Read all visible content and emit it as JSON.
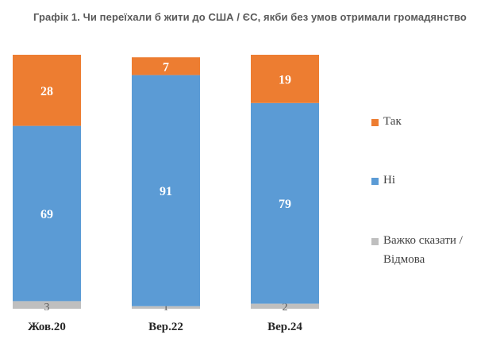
{
  "title": "Графік 1. Чи переїхали б жити до США / ЄС, якби без умов отримали громадянство",
  "colors": {
    "yes": "#ED7D31",
    "no": "#5B9BD5",
    "hard": "#BFBFBF"
  },
  "legend": {
    "items": [
      {
        "label": "Так",
        "color": "#ED7D31"
      },
      {
        "label": "Ні",
        "color": "#5B9BD5"
      },
      {
        "label": "Важко сказати / Відмова",
        "color": "#BFBFBF"
      }
    ]
  },
  "chart_data": {
    "type": "bar",
    "stacked": true,
    "title": "Графік 1. Чи переїхали б жити до США / ЄС, якби без умов отримали громадянство",
    "categories": [
      "Жов.20",
      "Вер.22",
      "Вер.24"
    ],
    "series": [
      {
        "name": "Важко сказати / Відмова",
        "values": [
          3,
          1,
          2
        ],
        "color": "#BFBFBF"
      },
      {
        "name": "Ні",
        "values": [
          69,
          91,
          79
        ],
        "color": "#5B9BD5"
      },
      {
        "name": "Так",
        "values": [
          28,
          7,
          19
        ],
        "color": "#ED7D31"
      }
    ],
    "ylim": [
      0,
      100
    ],
    "grid": false,
    "legend_position": "right"
  }
}
